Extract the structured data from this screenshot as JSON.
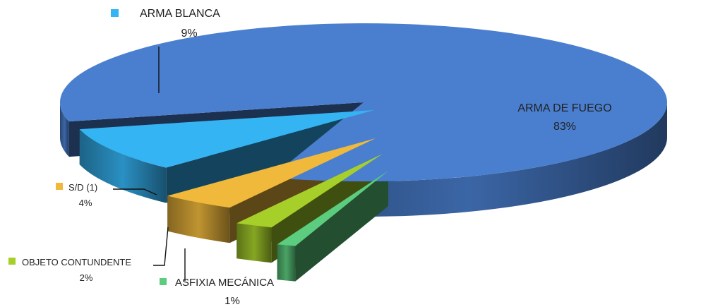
{
  "chart_data": {
    "type": "pie",
    "style": "3d-exploded",
    "title": "",
    "legend": "labels-with-swatches",
    "slices": [
      {
        "label": "ARMA DE FUEGO",
        "value": 83,
        "display": "83%",
        "color": "#4a7fd0",
        "label_position": "inside"
      },
      {
        "label": "ASFIXIA MECÁNICA",
        "value": 1,
        "display": "1%",
        "color": "#5ccc7e",
        "label_position": "outside"
      },
      {
        "label": "OBJETO CONTUNDENTE",
        "value": 2,
        "display": "2%",
        "color": "#a6cf2a",
        "label_position": "outside"
      },
      {
        "label": "S/D (1)",
        "value": 4,
        "display": "4%",
        "color": "#f0b93c",
        "label_position": "outside"
      },
      {
        "label": "ARMA BLANCA",
        "value": 9,
        "display": "9%",
        "color": "#35b4f4",
        "label_position": "outside"
      }
    ]
  }
}
